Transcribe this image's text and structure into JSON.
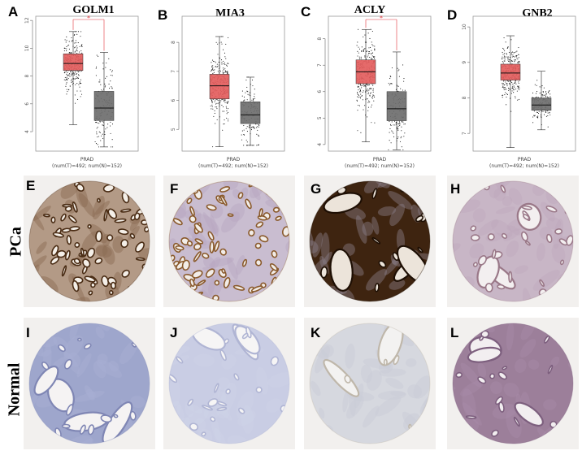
{
  "panels": {
    "A": {
      "letter": "A",
      "gene": "GOLM1"
    },
    "B": {
      "letter": "B",
      "gene": "MIA3"
    },
    "C": {
      "letter": "C",
      "gene": "ACLY"
    },
    "D": {
      "letter": "D",
      "gene": "GNB2"
    },
    "E": {
      "letter": "E"
    },
    "F": {
      "letter": "F"
    },
    "G": {
      "letter": "G"
    },
    "H": {
      "letter": "H"
    },
    "I": {
      "letter": "I"
    },
    "J": {
      "letter": "J"
    },
    "K": {
      "letter": "K"
    },
    "L": {
      "letter": "L"
    }
  },
  "row_labels": {
    "tumor": "PCa",
    "normal": "Normal"
  },
  "colors": {
    "tumor_box": "#e35d5d",
    "normal_box": "#6e6e6e",
    "significance": "#e0353a",
    "stain_strong": "#5a3a1c",
    "stain_light": "#c7b8d8"
  },
  "chart_data": [
    {
      "type": "box",
      "title": "GOLM1",
      "categories": [
        "PRAD"
      ],
      "xlabel_lines": [
        "PRAD",
        "(num(T)=492; num(N)=152)"
      ],
      "significance": "*",
      "ylim": [
        2.6,
        12.3
      ],
      "yticks": [
        4,
        6,
        8,
        10,
        12
      ],
      "series": [
        {
          "group": "T",
          "n": 492,
          "min": 4.5,
          "q1": 8.4,
          "median": 8.9,
          "q3": 9.6,
          "max": 11.2,
          "color": "#e35d5d"
        },
        {
          "group": "N",
          "n": 152,
          "min": 2.9,
          "q1": 4.8,
          "median": 5.7,
          "q3": 6.9,
          "max": 9.7,
          "color": "#6e6e6e"
        }
      ]
    },
    {
      "type": "box",
      "title": "MIA3",
      "categories": [
        "PRAD"
      ],
      "xlabel_lines": [
        "PRAD",
        "(num(T)=492; num(N)=152)"
      ],
      "significance": "",
      "ylim": [
        4.25,
        8.9
      ],
      "yticks": [
        5,
        6,
        7,
        8
      ],
      "series": [
        {
          "group": "T",
          "n": 492,
          "min": 4.4,
          "q1": 6.05,
          "median": 6.5,
          "q3": 6.9,
          "max": 8.2,
          "color": "#e35d5d"
        },
        {
          "group": "N",
          "n": 152,
          "min": 4.45,
          "q1": 5.2,
          "median": 5.5,
          "q3": 5.95,
          "max": 6.8,
          "color": "#6e6e6e"
        }
      ]
    },
    {
      "type": "box",
      "title": "ACLY",
      "categories": [
        "PRAD"
      ],
      "xlabel_lines": [
        "PRAD",
        "(num(T)=492; num(N)=152)"
      ],
      "significance": "*",
      "ylim": [
        3.75,
        8.85
      ],
      "yticks": [
        4,
        5,
        6,
        7,
        8
      ],
      "series": [
        {
          "group": "T",
          "n": 492,
          "min": 4.1,
          "q1": 6.3,
          "median": 6.75,
          "q3": 7.2,
          "max": 8.35,
          "color": "#e35d5d"
        },
        {
          "group": "N",
          "n": 152,
          "min": 3.8,
          "q1": 4.9,
          "median": 5.35,
          "q3": 6.0,
          "max": 7.5,
          "color": "#6e6e6e"
        }
      ]
    },
    {
      "type": "box",
      "title": "GNB2",
      "categories": [
        "PRAD"
      ],
      "xlabel_lines": [
        "PRAD",
        "(num(T)=492; num(N)=152)"
      ],
      "significance": "",
      "ylim": [
        6.5,
        10.3
      ],
      "yticks": [
        7,
        8,
        9,
        10
      ],
      "series": [
        {
          "group": "T",
          "n": 492,
          "min": 6.6,
          "q1": 8.5,
          "median": 8.7,
          "q3": 8.95,
          "max": 9.75,
          "color": "#e35d5d"
        },
        {
          "group": "N",
          "n": 152,
          "min": 7.1,
          "q1": 7.65,
          "median": 7.8,
          "q3": 8.0,
          "max": 8.75,
          "color": "#6e6e6e"
        }
      ]
    }
  ],
  "ihc_images": [
    {
      "panel": "E",
      "row": "PCa",
      "stain": "strong-brown"
    },
    {
      "panel": "F",
      "row": "PCa",
      "stain": "moderate-brown"
    },
    {
      "panel": "G",
      "row": "PCa",
      "stain": "very-strong-brown"
    },
    {
      "panel": "H",
      "row": "PCa",
      "stain": "weak-purple"
    },
    {
      "panel": "I",
      "row": "Normal",
      "stain": "blue"
    },
    {
      "panel": "J",
      "row": "Normal",
      "stain": "pale-blue"
    },
    {
      "panel": "K",
      "row": "Normal",
      "stain": "pale-grey"
    },
    {
      "panel": "L",
      "row": "Normal",
      "stain": "purple"
    }
  ]
}
